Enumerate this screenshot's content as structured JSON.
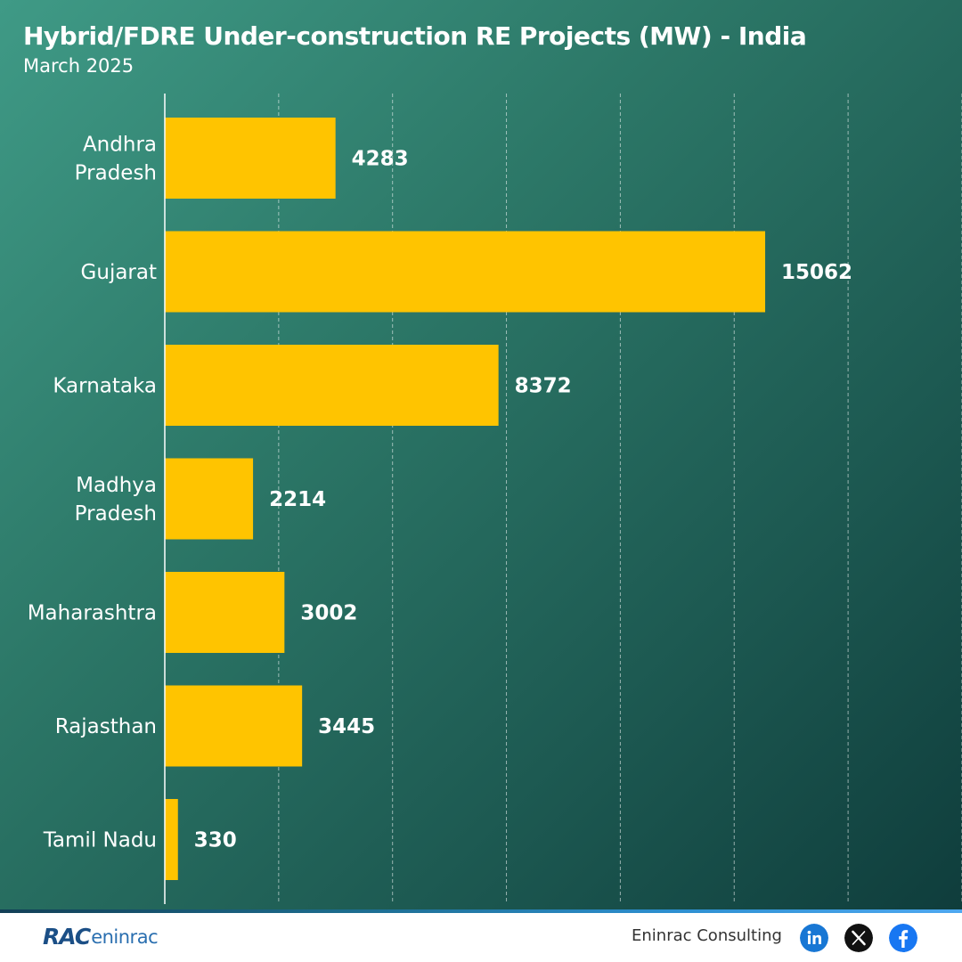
{
  "header": {
    "title": "Hybrid/FDRE  Under-construction RE Projects (MW) - India",
    "subtitle": "March 2025"
  },
  "chart_data": {
    "type": "bar",
    "orientation": "horizontal",
    "categories": [
      [
        "Andhra",
        "Pradesh"
      ],
      [
        "Gujarat"
      ],
      [
        "Karnataka"
      ],
      [
        "Madhya",
        "Pradesh"
      ],
      [
        "Maharashtra"
      ],
      [
        "Rajasthan"
      ],
      [
        "Tamil Nadu"
      ]
    ],
    "values": [
      4283,
      15062,
      8372,
      2214,
      3002,
      3445,
      330
    ],
    "xlim": [
      0,
      20000
    ],
    "grid_step": 2857,
    "grid": true,
    "bar_color": "#ffc400",
    "label_color": "#ffffff"
  },
  "footer": {
    "logo_mark": "RAC",
    "logo_word": "eninrac",
    "company": "Eninrac Consulting",
    "social_icons": [
      "linkedin-icon",
      "x-icon",
      "facebook-icon"
    ],
    "linkedin_color": "#1877d4",
    "x_color": "#111111",
    "facebook_color": "#1877f2"
  }
}
